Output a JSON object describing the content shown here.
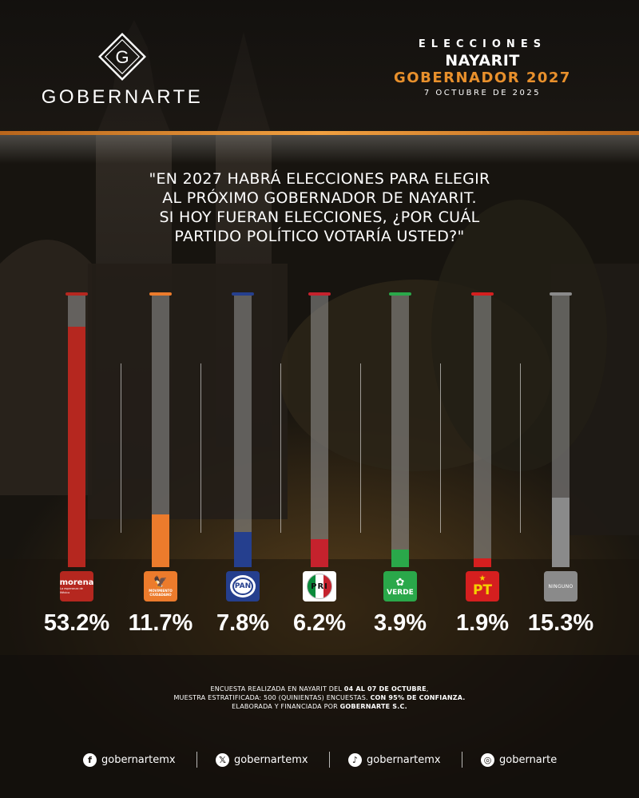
{
  "brand": {
    "name": "GOBERNARTE",
    "logo_letter": "G"
  },
  "header": {
    "line1": "ELECCIONES",
    "line2": "NAYARIT",
    "line3": "GOBERNADOR 2027",
    "line4": "7 OCTUBRE DE 2025",
    "accent_color": "#e8902c"
  },
  "question": {
    "line1": "\"EN 2027 HABRÁ ELECCIONES PARA ELEGIR",
    "line2": "AL PRÓXIMO GOBERNADOR DE NAYARIT.",
    "line3": "SI HOY FUERAN ELECCIONES, ¿POR CUÁL",
    "line4": "PARTIDO POLÍTICO VOTARÍA USTED?\""
  },
  "chart_data": {
    "type": "bar",
    "categories": [
      "morena",
      "MOVIMIENTO CIUDADANO",
      "PAN",
      "PRI",
      "VERDE",
      "PT",
      "NINGUNO"
    ],
    "values": [
      53.2,
      11.7,
      7.8,
      6.2,
      3.9,
      1.9,
      15.3
    ],
    "value_labels": [
      "53.2%",
      "11.7%",
      "7.8%",
      "6.2%",
      "3.9%",
      "1.9%",
      "15.3%"
    ],
    "colors": [
      "#b5271f",
      "#ec7b2c",
      "#253f8e",
      "#c5222d",
      "#2aa84a",
      "#d51f1f",
      "#8a8a8a"
    ],
    "ylim": [
      0,
      60
    ],
    "grid": false,
    "legend": "none"
  },
  "party_logos": {
    "morena": {
      "name": "morena",
      "sub": "La esperanza de México",
      "icon": "morena-logo-icon"
    },
    "mc": {
      "name": "MOVIMIENTO CIUDADANO",
      "icon": "mc-eagle-icon"
    },
    "pan": {
      "name": "PAN",
      "icon": "pan-logo-icon"
    },
    "pri": {
      "name": "PRI",
      "icon": "pri-logo-icon"
    },
    "verde": {
      "name": "VERDE",
      "icon": "verde-logo-icon"
    },
    "pt": {
      "name": "PT",
      "icon": "pt-star-icon"
    },
    "ninguno": {
      "name": "NINGUNO"
    }
  },
  "footnote": {
    "line1_a": "ENCUESTA REALIZADA EN NAYARIT DEL ",
    "line1_b": "04 AL 07 DE OCTUBRE",
    "line1_c": ",",
    "line2_a": "MUESTRA ESTRATIFICADA: 500 (QUINIENTAS) ENCUESTAS. ",
    "line2_b": "CON 95% DE CONFIANZA.",
    "line3_a": "ELABORADA Y FINANCIADA POR ",
    "line3_b": "GOBERNARTE S.C."
  },
  "social": [
    {
      "icon": "facebook-icon",
      "handle": "gobernartemx"
    },
    {
      "icon": "x-twitter-icon",
      "handle": "gobernartemx"
    },
    {
      "icon": "tiktok-icon",
      "handle": "gobernartemx"
    },
    {
      "icon": "instagram-icon",
      "handle": "gobernarte"
    }
  ]
}
